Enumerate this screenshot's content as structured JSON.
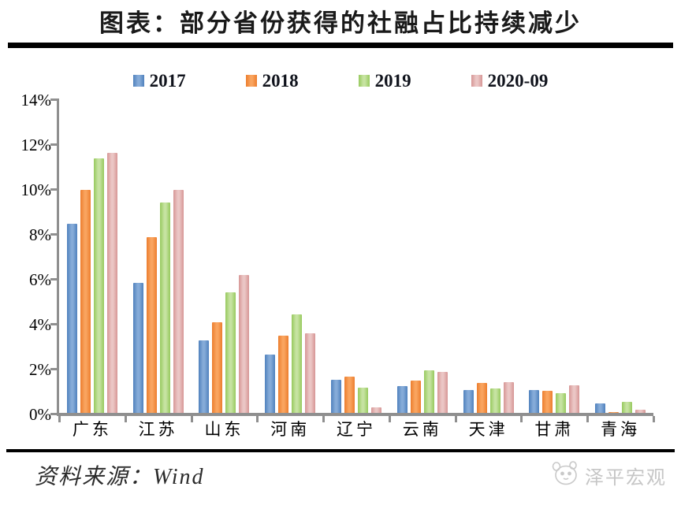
{
  "title": "图表：部分省份获得的社融占比持续减少",
  "source": "资料来源：Wind",
  "brand": {
    "name": "泽平宏观",
    "icon": "panda-face",
    "color": "#c6c6c6"
  },
  "colors": {
    "axis": "#8f8f8f",
    "rule": "#000000",
    "series_2017": "#4f81bd",
    "series_2018": "#ec7d2d",
    "series_2019": "#97c95e",
    "series_2020": "#d69695"
  },
  "chart_data": {
    "type": "bar",
    "title": "图表：部分省份获得的社融占比持续减少",
    "categories": [
      "广东",
      "江苏",
      "山东",
      "河南",
      "辽宁",
      "云南",
      "天津",
      "甘肃",
      "青海"
    ],
    "series": [
      {
        "name": "2017",
        "color": "#4f81bd",
        "color_light": "#85abd8",
        "values": [
          8.5,
          5.85,
          3.3,
          2.65,
          1.55,
          1.25,
          1.1,
          1.1,
          0.5
        ]
      },
      {
        "name": "2018",
        "color": "#ec7d2d",
        "color_light": "#f9a45f",
        "values": [
          10.0,
          7.9,
          4.1,
          3.5,
          1.7,
          1.5,
          1.4,
          1.05,
          0.1
        ]
      },
      {
        "name": "2019",
        "color": "#97c95e",
        "color_light": "#c6e3a1",
        "values": [
          11.4,
          9.45,
          5.45,
          4.45,
          1.2,
          1.95,
          1.15,
          0.95,
          0.55
        ]
      },
      {
        "name": "2020-09",
        "color": "#d69695",
        "color_light": "#ebc6c5",
        "values": [
          11.65,
          10.0,
          6.2,
          3.6,
          0.3,
          1.9,
          1.45,
          1.3,
          0.2
        ]
      }
    ],
    "xlabel": "",
    "ylabel": "",
    "ylim": [
      0,
      14
    ],
    "ytick_step": 2,
    "ytick_labels": [
      "0%",
      "2%",
      "4%",
      "6%",
      "8%",
      "10%",
      "12%",
      "14%"
    ],
    "legend_position": "top",
    "grid": false
  }
}
